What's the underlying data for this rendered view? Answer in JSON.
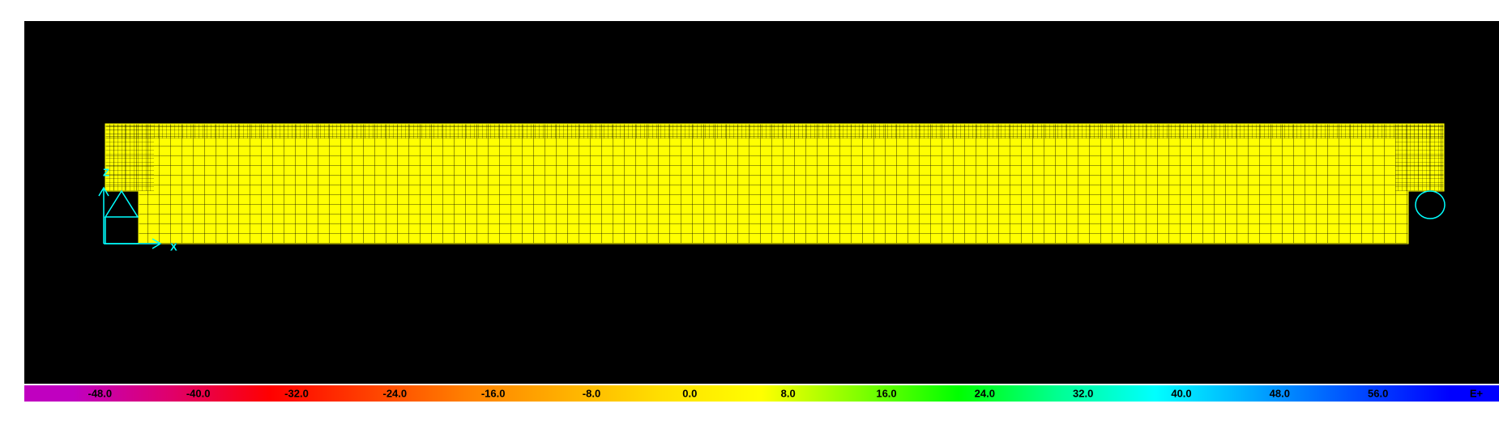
{
  "axes": {
    "z_label": "Z",
    "x_label": "X"
  },
  "colorbar": {
    "labels": [
      "-48.0",
      "-40.0",
      "-32.0",
      "-24.0",
      "-16.0",
      "-8.0",
      "0.0",
      "8.0",
      "16.0",
      "24.0",
      "32.0",
      "40.0",
      "48.0",
      "56.0",
      "E+"
    ],
    "colors": [
      "#c000c0",
      "#e0006a",
      "#ff0000",
      "#ff4000",
      "#ff8000",
      "#ffb000",
      "#ffe000",
      "#ffff00",
      "#80ff00",
      "#00ff00",
      "#00ff90",
      "#00ffff",
      "#00a8ff",
      "#0050ff",
      "#0000ff"
    ]
  }
}
